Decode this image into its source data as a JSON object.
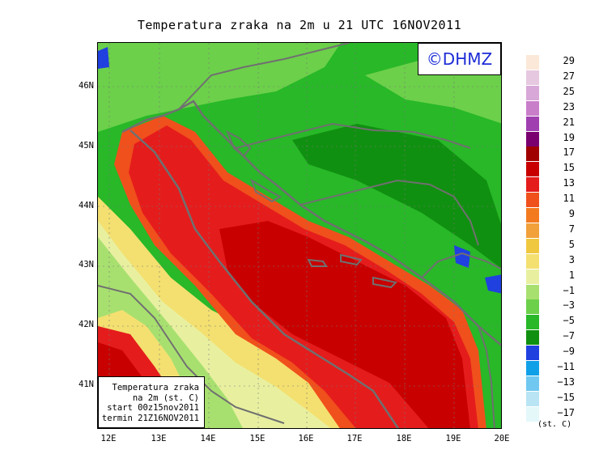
{
  "title": "Temperatura zraka na 2m u 21 UTC 16NOV2011",
  "logo": "©DHMZ",
  "infobox": {
    "line1": "Temperatura zraka",
    "line2": "na 2m (st. C)",
    "line3": "start 00z15nov2011",
    "line4": "termin 21Z16NOV2011"
  },
  "lat_labels": [
    "46N",
    "45N",
    "44N",
    "43N",
    "42N",
    "41N"
  ],
  "lon_labels": [
    "12E",
    "13E",
    "14E",
    "15E",
    "16E",
    "17E",
    "18E",
    "19E",
    "20E"
  ],
  "legend": {
    "units": "(st. C)",
    "labels": [
      "29",
      "27",
      "25",
      "23",
      "21",
      "19",
      "17",
      "15",
      "13",
      "11",
      "9",
      "7",
      "5",
      "3",
      "1",
      "−1",
      "−3",
      "−5",
      "−7",
      "−9",
      "−11",
      "−13",
      "−15",
      "−17"
    ],
    "colors": [
      "#fbe8d8",
      "#e6c8e0",
      "#d8a8d8",
      "#c97ec9",
      "#a040b0",
      "#7a0070",
      "#a00000",
      "#c80000",
      "#e51c1c",
      "#f0501c",
      "#f47a20",
      "#f2a03a",
      "#f0c840",
      "#f4e070",
      "#e8f0a0",
      "#a8e070",
      "#6cd04a",
      "#28b828",
      "#109010",
      "#2040e0",
      "#10a0e8",
      "#70c8f0",
      "#b8e4f4",
      "#e4f8fa"
    ]
  }
}
